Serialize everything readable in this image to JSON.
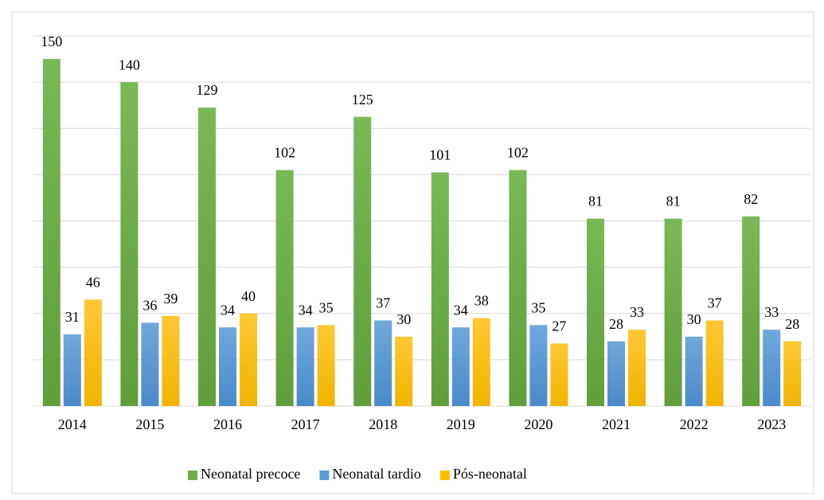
{
  "chart_data": {
    "type": "bar",
    "categories": [
      "2014",
      "2015",
      "2016",
      "2017",
      "2018",
      "2019",
      "2020",
      "2021",
      "2022",
      "2023"
    ],
    "series": [
      {
        "name": "Neonatal precoce",
        "color": "#70ad47",
        "values": [
          150,
          140,
          129,
          102,
          125,
          101,
          102,
          81,
          81,
          82
        ]
      },
      {
        "name": "Neonatal tardio",
        "color": "#5b9bd5",
        "values": [
          31,
          36,
          34,
          34,
          37,
          34,
          35,
          28,
          30,
          33
        ]
      },
      {
        "name": "Pós-neonatal",
        "color": "#ffc000",
        "values": [
          46,
          39,
          40,
          35,
          30,
          38,
          27,
          33,
          37,
          28
        ]
      }
    ],
    "ylim": [
      0,
      160
    ],
    "yticks": [
      0,
      20,
      40,
      60,
      80,
      100,
      120,
      140,
      160
    ],
    "grid": true,
    "legend": "bottom"
  }
}
